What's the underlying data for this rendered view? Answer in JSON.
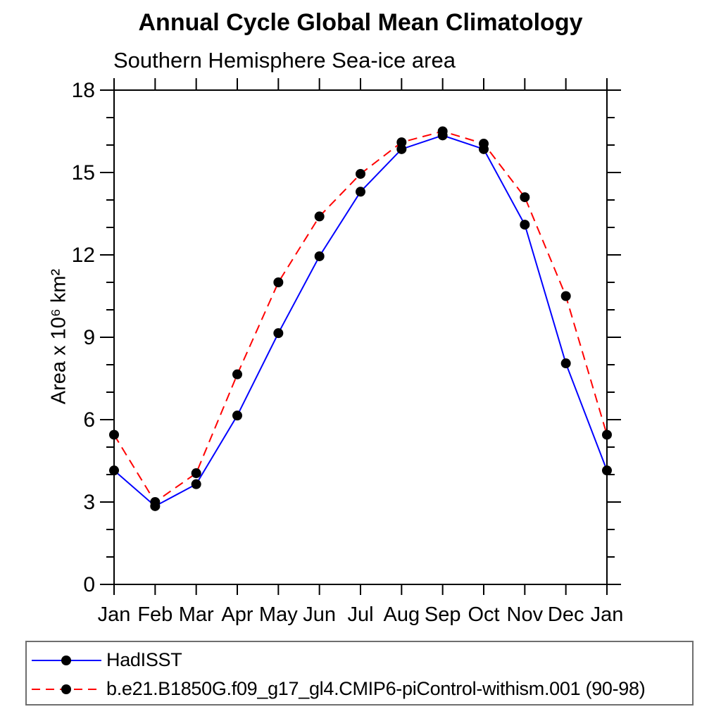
{
  "title": "Annual Cycle Global Mean Climatology",
  "subtitle": "Southern Hemisphere Sea-ice area",
  "chart_data": {
    "type": "line",
    "x_categories": [
      "Jan",
      "Feb",
      "Mar",
      "Apr",
      "May",
      "Jun",
      "Jul",
      "Aug",
      "Sep",
      "Oct",
      "Nov",
      "Dec",
      "Jan"
    ],
    "ylabel": "Area x 10⁶ km²",
    "ylim": [
      0,
      18
    ],
    "ytick_major": [
      0,
      3,
      6,
      9,
      12,
      15,
      18
    ],
    "ytick_minor_step": 1,
    "grid": false,
    "legend_position": "bottom-left-box",
    "marker_color": "#000000",
    "axis_color": "#000000",
    "series": [
      {
        "name": "HadISST",
        "color": "#0000ff",
        "line_style": "solid",
        "values": [
          4.15,
          2.85,
          3.65,
          6.15,
          9.15,
          11.95,
          14.3,
          15.85,
          16.35,
          15.85,
          13.1,
          8.05,
          4.15
        ]
      },
      {
        "name": "b.e21.B1850G.f09_g17_gl4.CMIP6-piControl-withism.001 (90-98)",
        "color": "#ff0000",
        "line_style": "dashed",
        "values": [
          5.45,
          3.0,
          4.05,
          7.65,
          11.0,
          13.4,
          14.95,
          16.1,
          16.5,
          16.05,
          14.1,
          10.5,
          5.45
        ]
      }
    ]
  }
}
